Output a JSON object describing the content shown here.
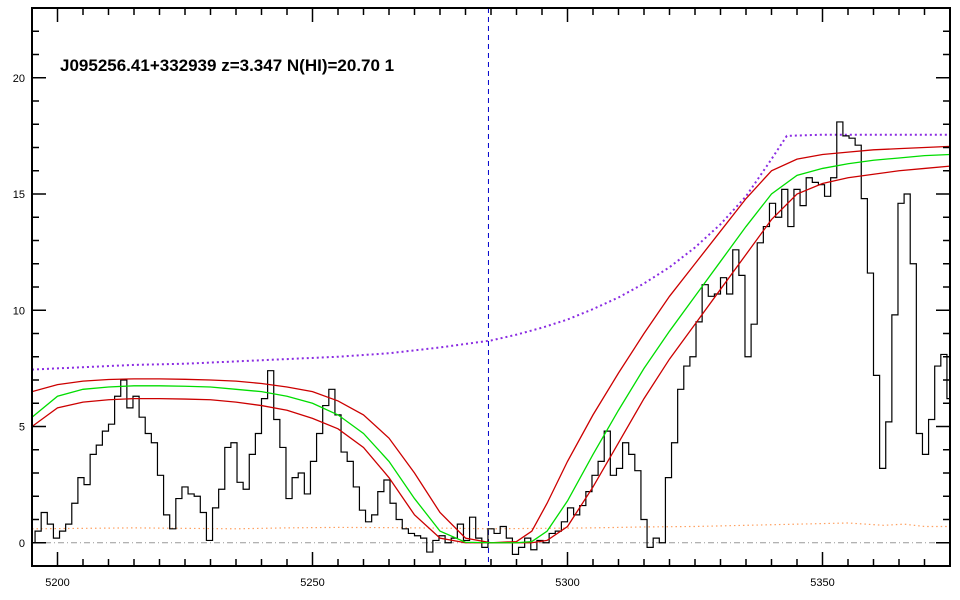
{
  "chart_data": {
    "type": "line",
    "title": "J095256.41+332939 z=3.347 N(HI)=20.70 1",
    "xlabel": "",
    "ylabel": "",
    "xlim": [
      5195,
      5375
    ],
    "ylim": [
      -1,
      23
    ],
    "x_ticks": [
      5200,
      5250,
      5300,
      5350
    ],
    "y_ticks": [
      0,
      5,
      10,
      15,
      20
    ],
    "grid": false,
    "legend": "none",
    "vline_x": 5284.5,
    "colors": {
      "flux": "#000000",
      "model": "#00dd00",
      "model_bounds": "#cc0000",
      "continuum": "#8a2be2",
      "error": "#ffa060",
      "zero_line": "#999999",
      "vline": "#0000cc"
    },
    "series": [
      {
        "role": "flux",
        "step": true,
        "points": [
          [
            5195.0,
            0.0
          ],
          [
            5196.2,
            0.5
          ],
          [
            5197.4,
            1.3
          ],
          [
            5198.6,
            0.8
          ],
          [
            5199.8,
            0.2
          ],
          [
            5201.0,
            0.5
          ],
          [
            5202.2,
            0.8
          ],
          [
            5203.4,
            1.7
          ],
          [
            5204.6,
            2.8
          ],
          [
            5205.8,
            2.5
          ],
          [
            5207.0,
            3.8
          ],
          [
            5208.2,
            4.2
          ],
          [
            5209.4,
            4.8
          ],
          [
            5210.6,
            5.1
          ],
          [
            5211.8,
            6.3
          ],
          [
            5213.0,
            7.0
          ],
          [
            5214.2,
            5.8
          ],
          [
            5215.4,
            6.3
          ],
          [
            5216.6,
            5.4
          ],
          [
            5217.8,
            4.7
          ],
          [
            5219.0,
            4.3
          ],
          [
            5220.2,
            2.9
          ],
          [
            5221.4,
            1.2
          ],
          [
            5222.6,
            0.6
          ],
          [
            5223.8,
            1.9
          ],
          [
            5225.0,
            2.4
          ],
          [
            5226.2,
            2.1
          ],
          [
            5227.4,
            2.0
          ],
          [
            5228.6,
            1.3
          ],
          [
            5229.8,
            0.1
          ],
          [
            5231.0,
            1.5
          ],
          [
            5232.2,
            2.3
          ],
          [
            5233.4,
            4.1
          ],
          [
            5234.6,
            4.3
          ],
          [
            5235.8,
            2.6
          ],
          [
            5237.0,
            2.3
          ],
          [
            5238.2,
            3.8
          ],
          [
            5239.4,
            4.7
          ],
          [
            5240.6,
            6.2
          ],
          [
            5241.8,
            7.4
          ],
          [
            5243.0,
            5.3
          ],
          [
            5244.2,
            4.1
          ],
          [
            5245.4,
            1.9
          ],
          [
            5246.6,
            2.8
          ],
          [
            5247.8,
            3.0
          ],
          [
            5249.0,
            2.1
          ],
          [
            5250.2,
            3.5
          ],
          [
            5251.4,
            4.7
          ],
          [
            5252.6,
            5.9
          ],
          [
            5253.8,
            6.6
          ],
          [
            5255.0,
            5.5
          ],
          [
            5256.2,
            3.9
          ],
          [
            5257.4,
            3.5
          ],
          [
            5258.6,
            2.4
          ],
          [
            5259.8,
            1.4
          ],
          [
            5261.0,
            0.9
          ],
          [
            5262.2,
            1.2
          ],
          [
            5263.4,
            2.2
          ],
          [
            5264.6,
            2.7
          ],
          [
            5265.8,
            1.7
          ],
          [
            5267.0,
            1.0
          ],
          [
            5268.2,
            0.6
          ],
          [
            5269.4,
            0.4
          ],
          [
            5270.6,
            0.3
          ],
          [
            5271.8,
            0.2
          ],
          [
            5273.0,
            -0.4
          ],
          [
            5274.2,
            0.1
          ],
          [
            5275.4,
            0.3
          ],
          [
            5276.6,
            0.0
          ],
          [
            5277.8,
            0.2
          ],
          [
            5279.0,
            0.8
          ],
          [
            5280.2,
            0.1
          ],
          [
            5281.4,
            1.1
          ],
          [
            5282.6,
            0.2
          ],
          [
            5283.8,
            -0.2
          ],
          [
            5285.0,
            0.6
          ],
          [
            5286.2,
            0.4
          ],
          [
            5287.4,
            0.7
          ],
          [
            5288.6,
            0.2
          ],
          [
            5289.8,
            -0.5
          ],
          [
            5291.0,
            -0.2
          ],
          [
            5292.2,
            0.2
          ],
          [
            5293.4,
            -0.3
          ],
          [
            5294.6,
            0.1
          ],
          [
            5295.8,
            0.0
          ],
          [
            5297.0,
            0.4
          ],
          [
            5298.2,
            0.5
          ],
          [
            5299.4,
            0.9
          ],
          [
            5300.6,
            1.5
          ],
          [
            5301.8,
            1.2
          ],
          [
            5303.0,
            1.6
          ],
          [
            5304.2,
            2.2
          ],
          [
            5305.4,
            2.9
          ],
          [
            5306.6,
            3.5
          ],
          [
            5307.8,
            4.8
          ],
          [
            5309.0,
            2.9
          ],
          [
            5310.2,
            3.2
          ],
          [
            5311.4,
            4.3
          ],
          [
            5312.6,
            3.8
          ],
          [
            5313.8,
            3.1
          ],
          [
            5315.0,
            1.0
          ],
          [
            5316.2,
            -0.2
          ],
          [
            5317.4,
            0.2
          ],
          [
            5318.6,
            0.0
          ],
          [
            5319.8,
            2.8
          ],
          [
            5321.0,
            4.3
          ],
          [
            5322.2,
            6.6
          ],
          [
            5323.4,
            7.6
          ],
          [
            5324.6,
            8.0
          ],
          [
            5325.8,
            9.5
          ],
          [
            5327.0,
            11.1
          ],
          [
            5328.2,
            10.6
          ],
          [
            5329.4,
            10.7
          ],
          [
            5330.6,
            11.4
          ],
          [
            5331.8,
            10.7
          ],
          [
            5333.0,
            12.6
          ],
          [
            5334.2,
            11.5
          ],
          [
            5335.4,
            8.0
          ],
          [
            5336.6,
            9.4
          ],
          [
            5337.8,
            12.9
          ],
          [
            5339.0,
            13.6
          ],
          [
            5340.2,
            14.6
          ],
          [
            5341.4,
            14.0
          ],
          [
            5342.6,
            15.2
          ],
          [
            5343.8,
            13.6
          ],
          [
            5345.0,
            15.2
          ],
          [
            5346.2,
            14.5
          ],
          [
            5347.4,
            15.7
          ],
          [
            5348.6,
            15.5
          ],
          [
            5349.8,
            15.4
          ],
          [
            5351.0,
            14.9
          ],
          [
            5352.2,
            15.7
          ],
          [
            5353.4,
            18.1
          ],
          [
            5354.6,
            17.5
          ],
          [
            5355.8,
            17.4
          ],
          [
            5357.0,
            17.1
          ],
          [
            5358.2,
            14.8
          ],
          [
            5359.4,
            11.6
          ],
          [
            5360.6,
            7.2
          ],
          [
            5361.8,
            3.2
          ],
          [
            5363.0,
            5.2
          ],
          [
            5364.2,
            9.8
          ],
          [
            5365.4,
            14.6
          ],
          [
            5366.6,
            15.0
          ],
          [
            5367.8,
            12.0
          ],
          [
            5369.0,
            4.7
          ],
          [
            5370.2,
            3.8
          ],
          [
            5371.4,
            5.3
          ],
          [
            5372.6,
            7.6
          ],
          [
            5373.8,
            8.1
          ],
          [
            5375.0,
            6.2
          ]
        ]
      },
      {
        "role": "model",
        "points": [
          [
            5195,
            5.4
          ],
          [
            5200,
            6.3
          ],
          [
            5205,
            6.6
          ],
          [
            5210,
            6.7
          ],
          [
            5215,
            6.75
          ],
          [
            5220,
            6.75
          ],
          [
            5225,
            6.73
          ],
          [
            5230,
            6.7
          ],
          [
            5235,
            6.6
          ],
          [
            5240,
            6.5
          ],
          [
            5245,
            6.3
          ],
          [
            5250,
            6.0
          ],
          [
            5255,
            5.5
          ],
          [
            5260,
            4.7
          ],
          [
            5265,
            3.5
          ],
          [
            5270,
            1.9
          ],
          [
            5275,
            0.5
          ],
          [
            5280,
            0.02
          ],
          [
            5285,
            0.0
          ],
          [
            5290,
            0.0
          ],
          [
            5293,
            0.05
          ],
          [
            5296,
            0.5
          ],
          [
            5300,
            1.8
          ],
          [
            5305,
            3.8
          ],
          [
            5310,
            5.7
          ],
          [
            5315,
            7.5
          ],
          [
            5320,
            9.1
          ],
          [
            5325,
            10.6
          ],
          [
            5330,
            12.1
          ],
          [
            5335,
            13.6
          ],
          [
            5340,
            15.0
          ],
          [
            5345,
            15.8
          ],
          [
            5350,
            16.1
          ],
          [
            5355,
            16.3
          ],
          [
            5360,
            16.45
          ],
          [
            5365,
            16.55
          ],
          [
            5370,
            16.65
          ],
          [
            5375,
            16.7
          ]
        ]
      },
      {
        "role": "model-upper",
        "points": [
          [
            5195,
            6.5
          ],
          [
            5200,
            6.8
          ],
          [
            5205,
            6.95
          ],
          [
            5210,
            7.02
          ],
          [
            5215,
            7.05
          ],
          [
            5220,
            7.05
          ],
          [
            5225,
            7.03
          ],
          [
            5230,
            7.0
          ],
          [
            5235,
            6.95
          ],
          [
            5240,
            6.85
          ],
          [
            5245,
            6.7
          ],
          [
            5250,
            6.5
          ],
          [
            5255,
            6.1
          ],
          [
            5260,
            5.5
          ],
          [
            5265,
            4.5
          ],
          [
            5270,
            3.0
          ],
          [
            5275,
            1.3
          ],
          [
            5280,
            0.2
          ],
          [
            5285,
            0.0
          ],
          [
            5290,
            0.05
          ],
          [
            5293,
            0.5
          ],
          [
            5296,
            1.7
          ],
          [
            5300,
            3.5
          ],
          [
            5305,
            5.5
          ],
          [
            5310,
            7.3
          ],
          [
            5315,
            9.0
          ],
          [
            5320,
            10.6
          ],
          [
            5325,
            12.0
          ],
          [
            5330,
            13.4
          ],
          [
            5335,
            14.8
          ],
          [
            5340,
            16.0
          ],
          [
            5345,
            16.5
          ],
          [
            5350,
            16.7
          ],
          [
            5355,
            16.8
          ],
          [
            5360,
            16.9
          ],
          [
            5365,
            16.95
          ],
          [
            5370,
            17.0
          ],
          [
            5375,
            17.05
          ]
        ]
      },
      {
        "role": "model-lower",
        "points": [
          [
            5195,
            5.0
          ],
          [
            5200,
            5.8
          ],
          [
            5205,
            6.05
          ],
          [
            5210,
            6.15
          ],
          [
            5215,
            6.2
          ],
          [
            5220,
            6.2
          ],
          [
            5225,
            6.18
          ],
          [
            5230,
            6.15
          ],
          [
            5235,
            6.05
          ],
          [
            5240,
            5.9
          ],
          [
            5245,
            5.7
          ],
          [
            5250,
            5.35
          ],
          [
            5255,
            4.9
          ],
          [
            5260,
            4.1
          ],
          [
            5265,
            2.8
          ],
          [
            5270,
            1.2
          ],
          [
            5275,
            0.2
          ],
          [
            5280,
            0.0
          ],
          [
            5285,
            0.0
          ],
          [
            5290,
            0.0
          ],
          [
            5293,
            0.0
          ],
          [
            5296,
            0.1
          ],
          [
            5300,
            0.7
          ],
          [
            5305,
            2.4
          ],
          [
            5310,
            4.3
          ],
          [
            5315,
            6.2
          ],
          [
            5320,
            7.9
          ],
          [
            5325,
            9.4
          ],
          [
            5330,
            10.9
          ],
          [
            5335,
            12.4
          ],
          [
            5340,
            13.9
          ],
          [
            5345,
            15.0
          ],
          [
            5350,
            15.45
          ],
          [
            5355,
            15.7
          ],
          [
            5360,
            15.85
          ],
          [
            5365,
            16.0
          ],
          [
            5370,
            16.1
          ],
          [
            5375,
            16.2
          ]
        ]
      },
      {
        "role": "continuum",
        "points": [
          [
            5195,
            7.45
          ],
          [
            5205,
            7.55
          ],
          [
            5215,
            7.65
          ],
          [
            5225,
            7.7
          ],
          [
            5235,
            7.8
          ],
          [
            5245,
            7.9
          ],
          [
            5255,
            8.0
          ],
          [
            5265,
            8.15
          ],
          [
            5275,
            8.4
          ],
          [
            5285,
            8.7
          ],
          [
            5290,
            8.95
          ],
          [
            5295,
            9.25
          ],
          [
            5300,
            9.6
          ],
          [
            5305,
            10.05
          ],
          [
            5310,
            10.55
          ],
          [
            5315,
            11.15
          ],
          [
            5320,
            11.85
          ],
          [
            5325,
            12.7
          ],
          [
            5330,
            13.7
          ],
          [
            5335,
            14.9
          ],
          [
            5340,
            16.5
          ],
          [
            5343,
            17.5
          ],
          [
            5350,
            17.55
          ],
          [
            5360,
            17.55
          ],
          [
            5375,
            17.55
          ]
        ]
      },
      {
        "role": "error",
        "points": [
          [
            5195,
            0.6
          ],
          [
            5205,
            0.62
          ],
          [
            5215,
            0.64
          ],
          [
            5225,
            0.62
          ],
          [
            5235,
            0.6
          ],
          [
            5245,
            0.64
          ],
          [
            5255,
            0.66
          ],
          [
            5265,
            0.65
          ],
          [
            5275,
            0.63
          ],
          [
            5285,
            0.6
          ],
          [
            5295,
            0.62
          ],
          [
            5305,
            0.64
          ],
          [
            5315,
            0.68
          ],
          [
            5325,
            0.7
          ],
          [
            5335,
            0.75
          ],
          [
            5345,
            0.8
          ],
          [
            5355,
            0.85
          ],
          [
            5362,
            0.75
          ],
          [
            5366,
            0.8
          ],
          [
            5370,
            0.7
          ],
          [
            5375,
            0.7
          ]
        ]
      }
    ]
  }
}
